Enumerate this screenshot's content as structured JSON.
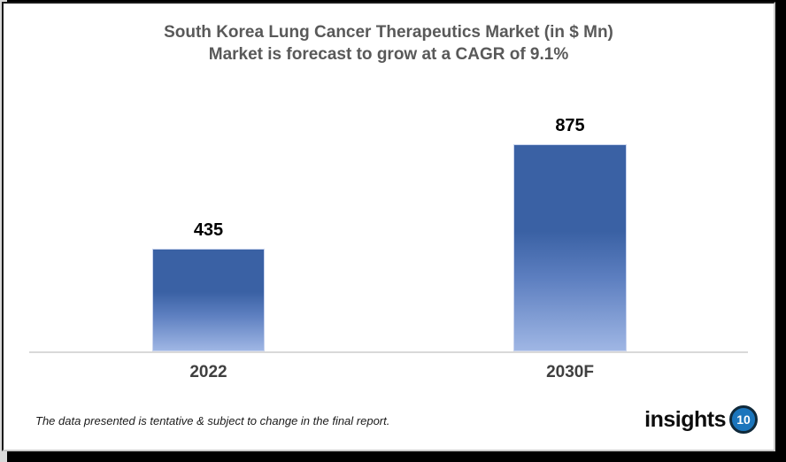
{
  "title": {
    "line1": "South Korea Lung Cancer Therapeutics Market (in $ Mn)",
    "line2": "Market is forecast to grow at a CAGR of 9.1%"
  },
  "chart_data": {
    "type": "bar",
    "categories": [
      "2022",
      "2030F"
    ],
    "values": [
      435,
      875
    ],
    "title": "South Korea Lung Cancer Therapeutics Market (in $ Mn)",
    "subtitle": "Market is forecast to grow at a CAGR of 9.1%",
    "xlabel": "",
    "ylabel": "",
    "ylim": [
      0,
      1000
    ],
    "grid": false,
    "legend": false,
    "data_labels_visible": true,
    "bar_gradient_top": "#3a61a4",
    "bar_gradient_bottom": "#9fb6e4",
    "axis_line_color": "#d9d9d9"
  },
  "footnote": "The data presented is tentative & subject to change in the final report.",
  "logo": {
    "text": "insights",
    "number": "10",
    "circle_color": "#1b75bc"
  },
  "colors": {
    "title_text": "#595959",
    "axis_label_text": "#404040",
    "data_label_text": "#000000",
    "frame_shadow": "#000000"
  }
}
